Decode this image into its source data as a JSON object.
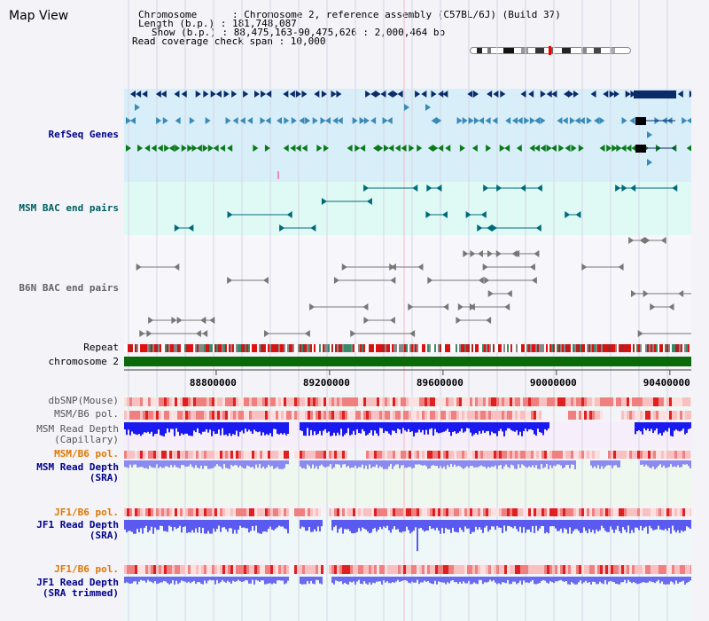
{
  "page": {
    "title": "Map View"
  },
  "info": {
    "chromosome": "Chromosome      : Chromosome 2, reference assembly (C57BL/6J) (Build 37)",
    "length": "Length (b.p.) : 181,748,087",
    "show": "Show (b.p.) : 88,475,163-90,475,626 : 2,000,464 bp",
    "coverage": "Read coverage check span : 10,000"
  },
  "tracks": {
    "refseq": "RefSeq Genes",
    "msm_bac": "MSM BAC end pairs",
    "b6n_bac": "B6N BAC end pairs",
    "repeat": "Repeat",
    "chromosome": "chromosome 2",
    "dbsnp": "dbSNP(Mouse)",
    "msm_b6_pol": "MSM/B6 pol.",
    "msm_read_depth_cap_1": "MSM Read Depth",
    "msm_read_depth_cap_2": "(Capillary)",
    "msm_b6_pol_2": "MSM/B6 pol.",
    "msm_read_depth_sra_1": "MSM Read Depth",
    "msm_read_depth_sra_2": "(SRA)",
    "jf1_b6_pol": "JF1/B6 pol.",
    "jf1_read_depth_1": "JF1 Read Depth",
    "jf1_read_depth_2": "(SRA)",
    "jf1_b6_pol_2": "JF1/B6 pol.",
    "jf1_trim_1": "JF1 Read Depth",
    "jf1_trim_2": "(SRA trimmed)"
  },
  "axis": {
    "ticks": [
      "88800000",
      "89200000",
      "89600000",
      "90000000",
      "90400000"
    ],
    "tick_values": [
      88800000,
      89200000,
      89600000,
      90000000,
      90400000
    ],
    "range": [
      88475163,
      90475626
    ]
  },
  "colors": {
    "navy": "#00008b",
    "teal": "#006060",
    "orange": "#e07800",
    "gene_dark": "#0a2a6a",
    "gene_mid": "#3a8ab8",
    "gene_green": "#0a7a1a",
    "chrom": "#0a6a0a",
    "depth": "#2a2af0"
  }
}
